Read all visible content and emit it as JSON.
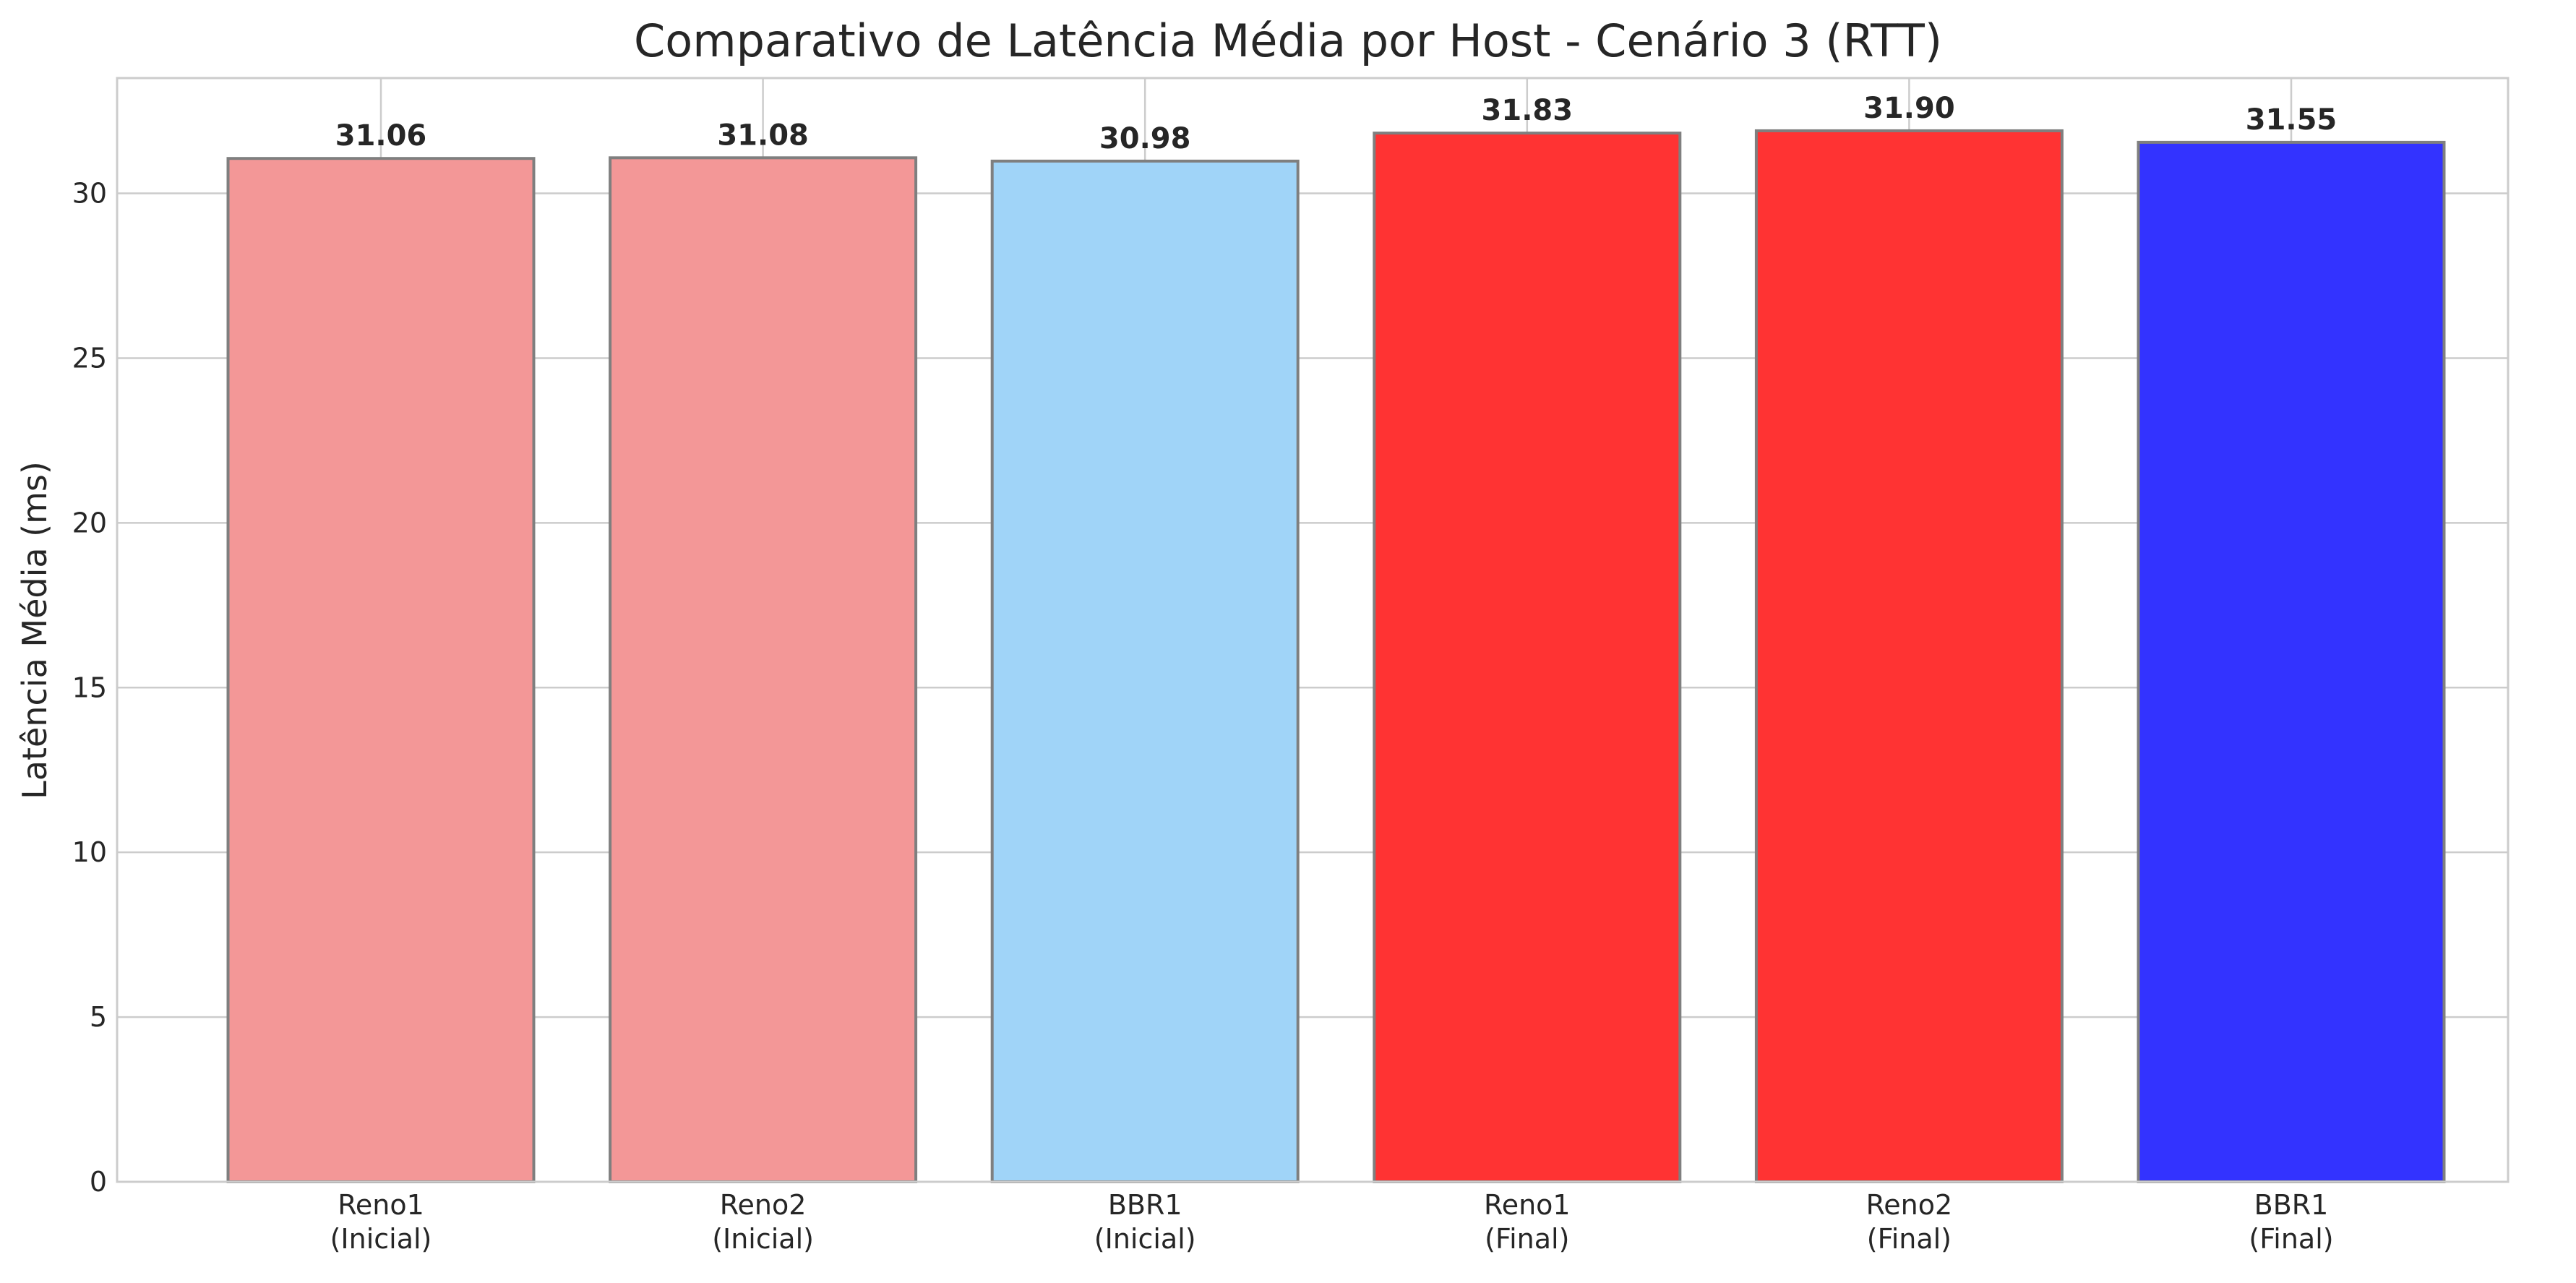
{
  "chart_data": {
    "type": "bar",
    "title": "Comparativo de Latência Média por Host - Cenário 3 (RTT)",
    "xlabel": "",
    "ylabel": "Latência Média (ms)",
    "ylim": [
      0,
      33.5
    ],
    "yticks": [
      0,
      5,
      10,
      15,
      20,
      25,
      30
    ],
    "grid": true,
    "legend": "none",
    "categories": [
      [
        "Reno1",
        "(Inicial)"
      ],
      [
        "Reno2",
        "(Inicial)"
      ],
      [
        "BBR1",
        "(Inicial)"
      ],
      [
        "Reno1",
        "(Final)"
      ],
      [
        "Reno2",
        "(Final)"
      ],
      [
        "BBR1",
        "(Final)"
      ]
    ],
    "values": [
      31.06,
      31.08,
      30.98,
      31.83,
      31.9,
      31.55
    ],
    "value_labels": [
      "31.06",
      "31.08",
      "30.98",
      "31.83",
      "31.90",
      "31.55"
    ],
    "colors": [
      "#f39797",
      "#f39797",
      "#a0d4f8",
      "#ff3333",
      "#ff3333",
      "#3333ff"
    ]
  }
}
